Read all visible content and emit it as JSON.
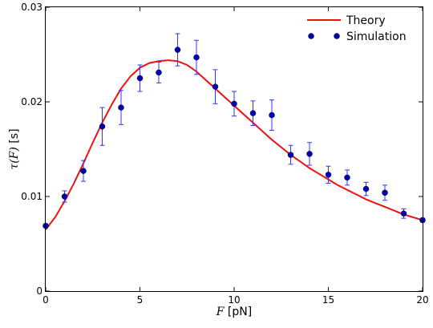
{
  "chart_data": {
    "type": "scatter",
    "xlabel_var": "F",
    "xlabel_unit": " [pN]",
    "ylabel_var": "τ(F)",
    "ylabel_unit": " [s]",
    "xlim": [
      0,
      20
    ],
    "ylim": [
      0,
      0.03
    ],
    "x_ticks": [
      0,
      5,
      10,
      15,
      20
    ],
    "y_ticks": [
      0,
      0.01,
      0.02,
      0.03
    ],
    "x_tick_labels": [
      "0",
      "5",
      "10",
      "15",
      "20"
    ],
    "y_tick_labels": [
      "0",
      "0.01",
      "0.02",
      "0.03"
    ],
    "grid": false,
    "legend_position": "top-right",
    "series": [
      {
        "name": "Theory",
        "kind": "line",
        "color": "#ee1111",
        "x": [
          0,
          0.5,
          1,
          1.5,
          2,
          2.5,
          3,
          3.5,
          4,
          4.5,
          5,
          5.5,
          6,
          6.5,
          7,
          7.5,
          8,
          8.5,
          9,
          9.5,
          10,
          10.5,
          11,
          11.5,
          12,
          12.5,
          13,
          13.5,
          14,
          14.5,
          15,
          15.5,
          16,
          16.5,
          17,
          17.5,
          18,
          18.5,
          19,
          19.5,
          20
        ],
        "y": [
          0.0065,
          0.0078,
          0.0095,
          0.0114,
          0.0135,
          0.0157,
          0.0178,
          0.0197,
          0.0214,
          0.0227,
          0.0236,
          0.0241,
          0.0243,
          0.0244,
          0.0243,
          0.0239,
          0.0232,
          0.0223,
          0.0214,
          0.0205,
          0.0196,
          0.0187,
          0.0178,
          0.0169,
          0.016,
          0.0152,
          0.0144,
          0.0137,
          0.013,
          0.0124,
          0.0118,
          0.0112,
          0.0107,
          0.0102,
          0.0097,
          0.0093,
          0.0089,
          0.0085,
          0.0081,
          0.0078,
          0.0075
        ]
      },
      {
        "name": "Simulation",
        "kind": "points",
        "color": "#0000b3",
        "error_color": "#3333ff",
        "x": [
          0,
          1,
          2,
          3,
          4,
          5,
          6,
          7,
          8,
          9,
          10,
          11,
          12,
          13,
          14,
          15,
          16,
          17,
          18,
          19,
          20
        ],
        "y": [
          0.0069,
          0.01,
          0.0127,
          0.0174,
          0.0194,
          0.0225,
          0.0231,
          0.0255,
          0.0247,
          0.0216,
          0.0198,
          0.0188,
          0.0186,
          0.0144,
          0.0145,
          0.0123,
          0.012,
          0.0108,
          0.0104,
          0.0082,
          0.0075
        ],
        "err": [
          0.0002,
          0.0006,
          0.0011,
          0.002,
          0.0018,
          0.0014,
          0.0011,
          0.0017,
          0.0018,
          0.0018,
          0.0013,
          0.0013,
          0.0016,
          0.001,
          0.0012,
          0.0009,
          0.0008,
          0.0007,
          0.0008,
          0.0005,
          0.0002
        ]
      }
    ]
  }
}
